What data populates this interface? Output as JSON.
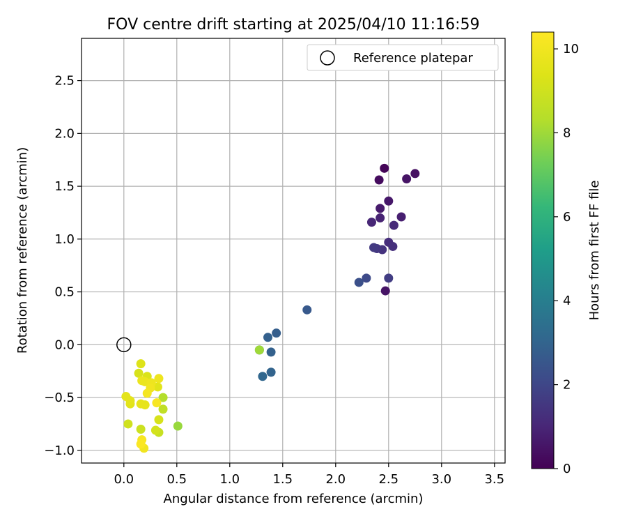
{
  "chart_data": {
    "type": "scatter",
    "title": "FOV centre drift starting at 2025/04/10 11:16:59",
    "xlabel": "Angular distance from reference (arcmin)",
    "ylabel": "Rotation from reference (arcmin)",
    "xlim": [
      -0.4,
      3.6
    ],
    "ylim": [
      -1.12,
      2.9
    ],
    "xticks": [
      "0.0",
      "0.5",
      "1.0",
      "1.5",
      "2.0",
      "2.5",
      "3.0",
      "3.5"
    ],
    "yticks": [
      "−1.0",
      "−0.5",
      "0.0",
      "0.5",
      "1.0",
      "1.5",
      "2.0",
      "2.5"
    ],
    "grid": true,
    "legend": {
      "position": "top-right",
      "entries": [
        "Reference platepar"
      ]
    },
    "reference_point": {
      "x": 0.0,
      "y": 0.0,
      "label": "Reference platepar"
    },
    "colorbar": {
      "label": "Hours from first FF file",
      "range": [
        0,
        10.4
      ],
      "ticks": [
        "0",
        "2",
        "4",
        "6",
        "8",
        "10"
      ],
      "colormap": "viridis"
    },
    "series": [
      {
        "points": [
          {
            "x": 2.46,
            "y": 1.67,
            "hours": 0.1
          },
          {
            "x": 2.41,
            "y": 1.56,
            "hours": 0.3
          },
          {
            "x": 2.75,
            "y": 1.62,
            "hours": 0.4
          },
          {
            "x": 2.67,
            "y": 1.57,
            "hours": 0.5
          },
          {
            "x": 2.5,
            "y": 1.36,
            "hours": 0.6
          },
          {
            "x": 2.42,
            "y": 1.29,
            "hours": 0.7
          },
          {
            "x": 2.62,
            "y": 1.21,
            "hours": 0.8
          },
          {
            "x": 2.42,
            "y": 1.2,
            "hours": 0.9
          },
          {
            "x": 2.34,
            "y": 1.16,
            "hours": 1.0
          },
          {
            "x": 2.55,
            "y": 1.13,
            "hours": 1.1
          },
          {
            "x": 2.5,
            "y": 0.97,
            "hours": 1.2
          },
          {
            "x": 2.54,
            "y": 0.93,
            "hours": 1.3
          },
          {
            "x": 2.44,
            "y": 0.9,
            "hours": 1.4
          },
          {
            "x": 2.39,
            "y": 0.91,
            "hours": 1.5
          },
          {
            "x": 2.36,
            "y": 0.92,
            "hours": 1.6
          },
          {
            "x": 2.47,
            "y": 0.51,
            "hours": 0.5
          },
          {
            "x": 2.5,
            "y": 0.63,
            "hours": 1.7
          },
          {
            "x": 2.29,
            "y": 0.63,
            "hours": 2.1
          },
          {
            "x": 2.22,
            "y": 0.59,
            "hours": 2.3
          },
          {
            "x": 1.73,
            "y": 0.33,
            "hours": 2.6
          },
          {
            "x": 1.44,
            "y": 0.11,
            "hours": 2.8
          },
          {
            "x": 1.36,
            "y": 0.07,
            "hours": 2.9
          },
          {
            "x": 1.39,
            "y": -0.07,
            "hours": 2.9
          },
          {
            "x": 1.28,
            "y": -0.05,
            "hours": 3.0
          },
          {
            "x": 1.39,
            "y": -0.26,
            "hours": 3.0
          },
          {
            "x": 1.31,
            "y": -0.3,
            "hours": 3.1
          },
          {
            "x": 1.28,
            "y": -0.05,
            "hours": 8.0
          },
          {
            "x": 0.51,
            "y": -0.77,
            "hours": 7.9
          },
          {
            "x": 0.37,
            "y": -0.5,
            "hours": 8.3
          },
          {
            "x": 0.37,
            "y": -0.61,
            "hours": 8.6
          },
          {
            "x": 0.33,
            "y": -0.83,
            "hours": 8.8
          },
          {
            "x": 0.16,
            "y": -0.8,
            "hours": 8.9
          },
          {
            "x": 0.04,
            "y": -0.75,
            "hours": 9.0
          },
          {
            "x": 0.3,
            "y": -0.81,
            "hours": 9.1
          },
          {
            "x": 0.33,
            "y": -0.71,
            "hours": 9.2
          },
          {
            "x": 0.14,
            "y": -0.27,
            "hours": 9.2
          },
          {
            "x": 0.22,
            "y": -0.3,
            "hours": 9.3
          },
          {
            "x": 0.16,
            "y": -0.18,
            "hours": 9.4
          },
          {
            "x": 0.32,
            "y": -0.4,
            "hours": 9.5
          },
          {
            "x": 0.06,
            "y": -0.56,
            "hours": 9.5
          },
          {
            "x": 0.02,
            "y": -0.49,
            "hours": 9.6
          },
          {
            "x": 0.06,
            "y": -0.53,
            "hours": 9.6
          },
          {
            "x": 0.2,
            "y": -0.57,
            "hours": 9.7
          },
          {
            "x": 0.16,
            "y": -0.56,
            "hours": 9.7
          },
          {
            "x": 0.17,
            "y": -0.34,
            "hours": 9.8
          },
          {
            "x": 0.2,
            "y": -0.35,
            "hours": 9.8
          },
          {
            "x": 0.33,
            "y": -0.32,
            "hours": 9.9
          },
          {
            "x": 0.26,
            "y": -0.36,
            "hours": 9.9
          },
          {
            "x": 0.25,
            "y": -0.41,
            "hours": 10.0
          },
          {
            "x": 0.22,
            "y": -0.46,
            "hours": 10.1
          },
          {
            "x": 0.31,
            "y": -0.55,
            "hours": 10.2
          },
          {
            "x": 0.19,
            "y": -0.98,
            "hours": 10.0
          },
          {
            "x": 0.17,
            "y": -0.9,
            "hours": 10.2
          },
          {
            "x": 0.16,
            "y": -0.94,
            "hours": 10.3
          }
        ]
      }
    ]
  }
}
